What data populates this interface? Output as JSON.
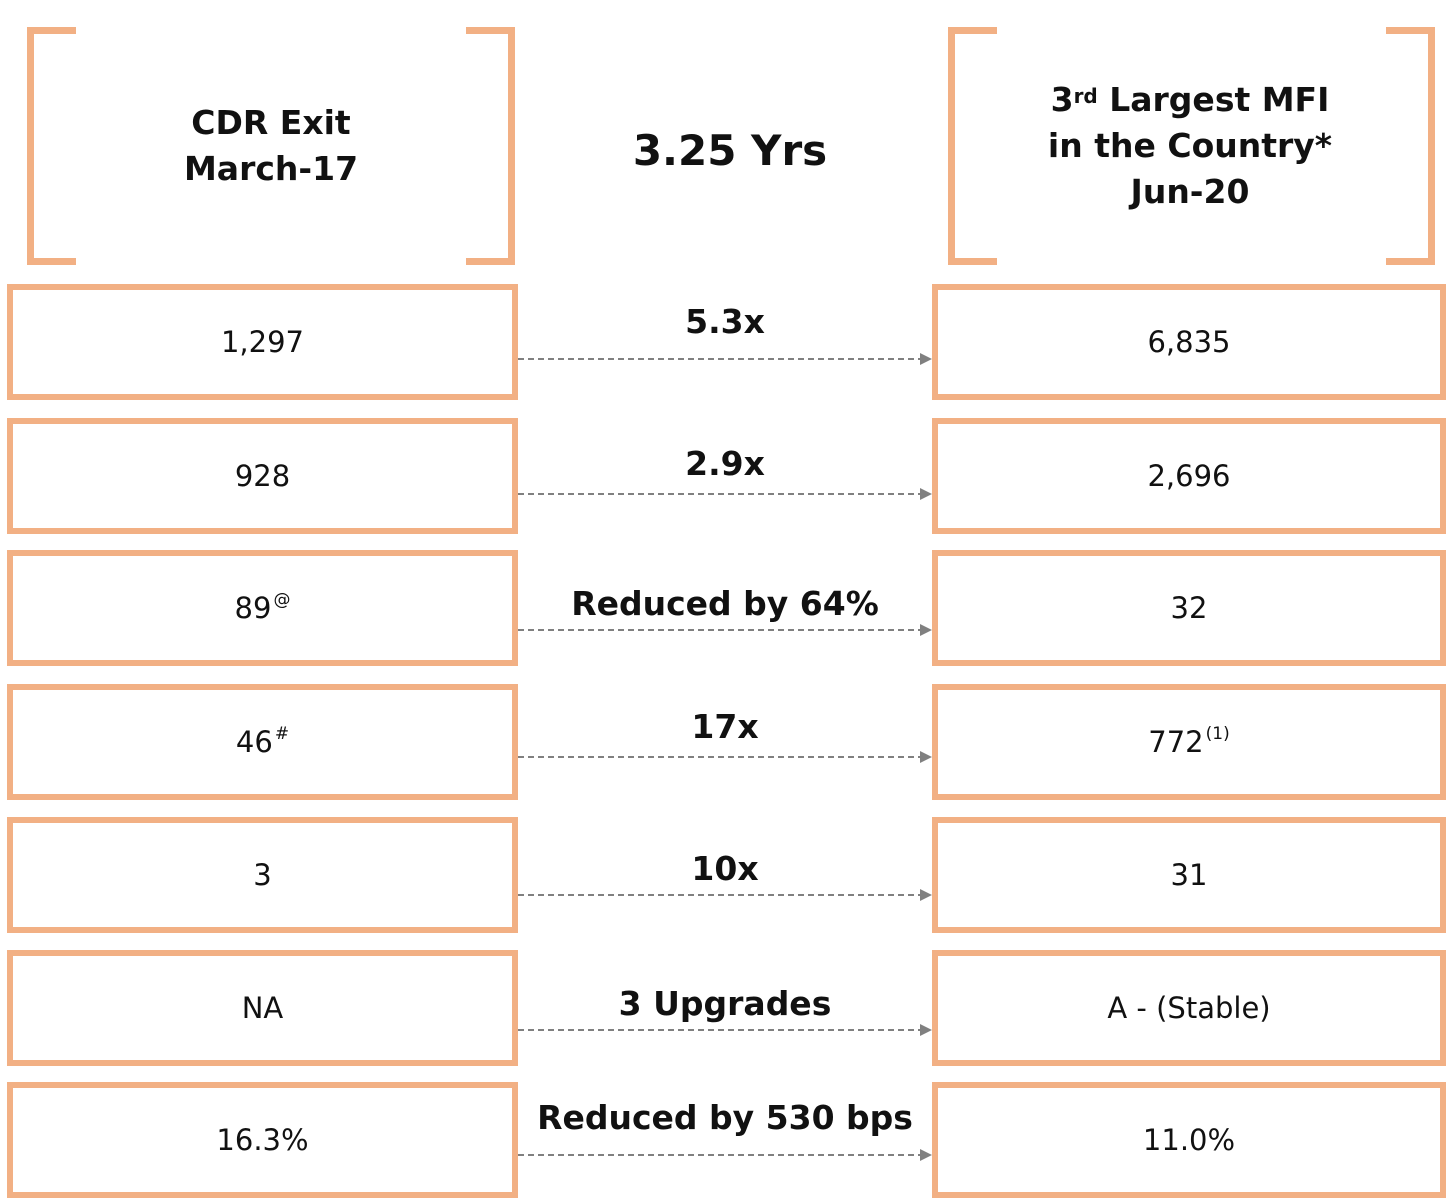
{
  "header": {
    "left": {
      "line1": "CDR Exit",
      "line2": "March-17"
    },
    "middle": "3.25 Yrs",
    "right": {
      "rank": "3",
      "rank_suffix": "rd",
      "line1_rest": " Largest MFI",
      "line2": "in the Country*",
      "line3": "Jun-20"
    }
  },
  "accent_color": "#F2B084",
  "arrow_color": "#808080",
  "rows": [
    {
      "left": "1,297",
      "left_mark": "",
      "middle": "5.3x",
      "right": "6,835",
      "right_mark": ""
    },
    {
      "left": "928",
      "left_mark": "",
      "middle": "2.9x",
      "right": "2,696",
      "right_mark": ""
    },
    {
      "left": "89",
      "left_mark": "@",
      "middle": "Reduced by 64%",
      "right": "32",
      "right_mark": ""
    },
    {
      "left": "46 ",
      "left_mark": "#",
      "middle": "17x",
      "right": "772",
      "right_mark": "(1)"
    },
    {
      "left": "3",
      "left_mark": "",
      "middle": "10x",
      "right": "31",
      "right_mark": ""
    },
    {
      "left": "NA",
      "left_mark": "",
      "middle": "3 Upgrades",
      "right": "A - (Stable)",
      "right_mark": ""
    },
    {
      "left": "16.3%",
      "left_mark": "",
      "middle": "Reduced by 530 bps",
      "right": "11.0%",
      "right_mark": ""
    }
  ]
}
